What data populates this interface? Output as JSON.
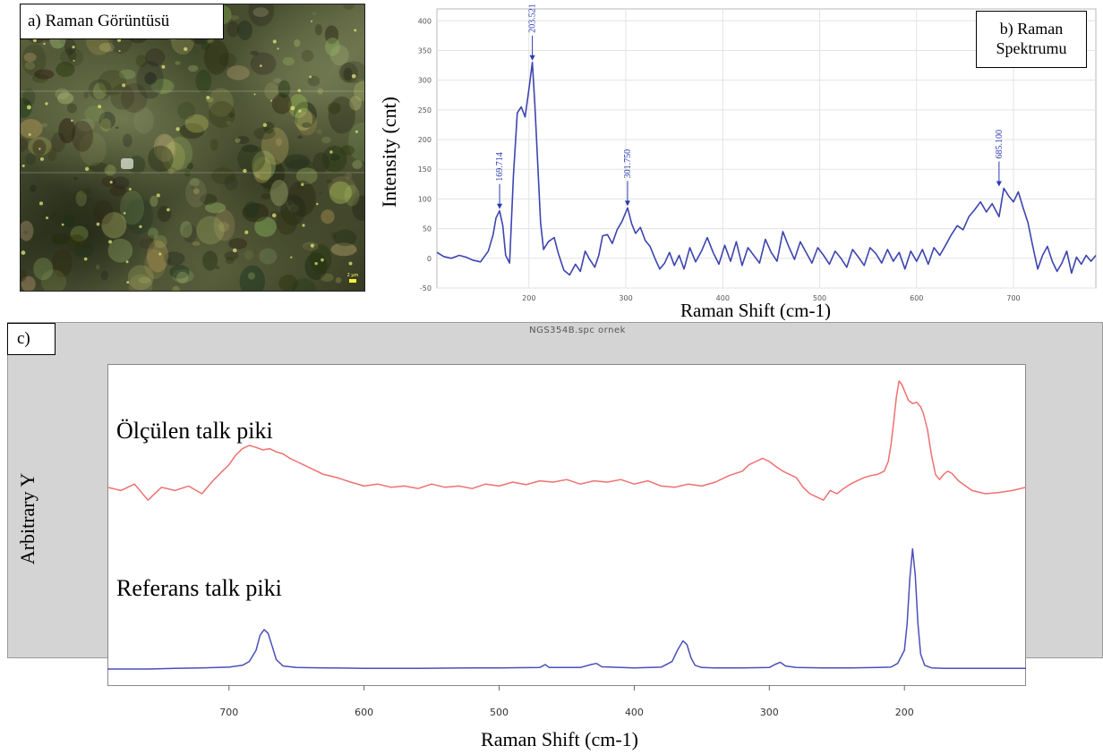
{
  "panel_a": {
    "label": "a) Raman Görüntüsü",
    "scale_bar": "2 µm"
  },
  "panel_b": {
    "label_line1": "b) Raman",
    "label_line2": "Spektrumu"
  },
  "panel_c": {
    "label": "c)",
    "file_title": "NGS354B.spc  ornek",
    "measured_label": "Ölçülen talk piki",
    "reference_label": "Referans talk piki"
  },
  "colors": {
    "spectrum_b": "#3d44b0",
    "measured": "#ef7070",
    "reference": "#4a4fb8",
    "peak_label": "#2a3ab0"
  },
  "chart_data": [
    {
      "type": "line",
      "title": "",
      "xlabel": "Raman Shift (cm-1)",
      "ylabel": "Intensity (cnt)",
      "xlim": [
        105,
        785
      ],
      "ylim": [
        -50,
        420
      ],
      "xticks": [
        200,
        300,
        400,
        500,
        600,
        700
      ],
      "yticks": [
        -50,
        0,
        50,
        100,
        150,
        200,
        250,
        300,
        350,
        400
      ],
      "grid": true,
      "peak_annotations": [
        {
          "x": 169.714,
          "y": 80,
          "label": "169.714"
        },
        {
          "x": 203.521,
          "y": 330,
          "label": "203.521"
        },
        {
          "x": 301.75,
          "y": 85,
          "label": "301.750"
        },
        {
          "x": 685.1,
          "y": 118,
          "label": "685.100"
        }
      ],
      "series": [
        {
          "x": [
            105,
            112,
            120,
            128,
            135,
            142,
            150,
            158,
            163,
            166,
            169.7,
            173,
            176,
            180,
            184,
            188,
            192,
            196,
            200,
            203.5,
            206,
            209,
            212,
            215,
            220,
            226,
            230,
            236,
            242,
            248,
            253,
            258,
            262,
            268,
            272,
            276,
            281,
            286,
            291,
            296,
            301.75,
            306,
            310,
            315,
            320,
            325,
            330,
            335,
            340,
            345,
            350,
            355,
            360,
            366,
            372,
            378,
            384,
            390,
            396,
            402,
            408,
            414,
            420,
            426,
            432,
            438,
            444,
            450,
            456,
            462,
            468,
            474,
            480,
            486,
            492,
            498,
            504,
            510,
            516,
            522,
            528,
            534,
            540,
            546,
            552,
            558,
            564,
            570,
            576,
            582,
            588,
            594,
            600,
            606,
            612,
            618,
            624,
            630,
            636,
            642,
            648,
            654,
            660,
            666,
            672,
            678,
            685.1,
            690,
            695,
            700,
            705,
            710,
            715,
            720,
            725,
            730,
            735,
            740,
            745,
            750,
            755,
            760,
            765,
            770,
            775,
            780,
            785
          ],
          "y": [
            10,
            3,
            0,
            5,
            2,
            -3,
            -6,
            12,
            40,
            68,
            80,
            55,
            5,
            -8,
            140,
            245,
            255,
            238,
            285,
            330,
            262,
            160,
            60,
            15,
            28,
            35,
            10,
            -20,
            -28,
            -10,
            -22,
            12,
            0,
            -15,
            5,
            38,
            40,
            25,
            48,
            62,
            85,
            58,
            42,
            52,
            30,
            20,
            0,
            -18,
            -8,
            10,
            -12,
            5,
            -18,
            18,
            -6,
            12,
            35,
            10,
            -10,
            22,
            -5,
            28,
            -12,
            18,
            5,
            -8,
            32,
            10,
            -5,
            45,
            20,
            -2,
            28,
            10,
            -8,
            18,
            5,
            -10,
            12,
            0,
            -15,
            15,
            2,
            -12,
            18,
            8,
            -8,
            15,
            -5,
            10,
            -18,
            12,
            -5,
            15,
            -10,
            18,
            5,
            22,
            40,
            55,
            48,
            70,
            82,
            95,
            78,
            92,
            70,
            118,
            105,
            95,
            112,
            85,
            60,
            20,
            -18,
            5,
            20,
            -5,
            -22,
            -8,
            12,
            -25,
            2,
            -10,
            5,
            -5,
            5
          ]
        }
      ]
    },
    {
      "type": "line",
      "title": "NGS354B.spc  ornek",
      "xlabel": "Raman Shift (cm-1)",
      "ylabel": "Arbitrary Y",
      "xlim": [
        790,
        110
      ],
      "xticks": [
        700,
        600,
        500,
        400,
        300,
        200
      ],
      "grid": false,
      "series": [
        {
          "name": "Ölçülen talk piki",
          "x": [
            790,
            780,
            770,
            760,
            750,
            740,
            730,
            720,
            712,
            705,
            700,
            695,
            690,
            685,
            680,
            675,
            670,
            665,
            660,
            655,
            650,
            645,
            640,
            635,
            630,
            620,
            610,
            600,
            590,
            580,
            570,
            560,
            550,
            540,
            530,
            520,
            510,
            500,
            490,
            480,
            470,
            460,
            450,
            440,
            430,
            420,
            410,
            400,
            390,
            380,
            370,
            360,
            350,
            340,
            330,
            320,
            315,
            310,
            305,
            300,
            295,
            290,
            285,
            280,
            275,
            270,
            265,
            260,
            255,
            250,
            245,
            240,
            235,
            230,
            225,
            220,
            215,
            212,
            210,
            208,
            206,
            204,
            202,
            200,
            197,
            194,
            191,
            188,
            186,
            183,
            180,
            177,
            174,
            171,
            168,
            165,
            160,
            150,
            140,
            130,
            120,
            110
          ],
          "y": [
            0.1,
            0.05,
            0.15,
            -0.1,
            0.1,
            0.05,
            0.12,
            0.0,
            0.2,
            0.35,
            0.45,
            0.6,
            0.7,
            0.75,
            0.72,
            0.68,
            0.7,
            0.65,
            0.62,
            0.55,
            0.5,
            0.45,
            0.4,
            0.35,
            0.3,
            0.25,
            0.18,
            0.12,
            0.15,
            0.1,
            0.12,
            0.08,
            0.15,
            0.1,
            0.12,
            0.08,
            0.15,
            0.12,
            0.18,
            0.14,
            0.2,
            0.18,
            0.22,
            0.15,
            0.2,
            0.18,
            0.22,
            0.15,
            0.2,
            0.12,
            0.1,
            0.15,
            0.12,
            0.18,
            0.28,
            0.35,
            0.45,
            0.5,
            0.55,
            0.5,
            0.42,
            0.35,
            0.3,
            0.25,
            0.1,
            0.0,
            -0.05,
            -0.1,
            0.05,
            0.0,
            0.08,
            0.15,
            0.2,
            0.25,
            0.28,
            0.3,
            0.35,
            0.5,
            0.75,
            1.1,
            1.5,
            1.75,
            1.7,
            1.6,
            1.45,
            1.4,
            1.42,
            1.35,
            1.25,
            1.0,
            0.6,
            0.3,
            0.22,
            0.3,
            0.35,
            0.32,
            0.2,
            0.05,
            0.0,
            0.02,
            0.05,
            0.1
          ]
        },
        {
          "name": "Referans talk piki",
          "x": [
            790,
            760,
            740,
            720,
            700,
            690,
            685,
            680,
            677,
            674,
            671,
            668,
            665,
            660,
            650,
            630,
            600,
            580,
            560,
            520,
            500,
            470,
            466,
            463,
            440,
            432,
            428,
            424,
            400,
            380,
            372,
            368,
            364,
            361,
            358,
            355,
            350,
            340,
            320,
            300,
            296,
            292,
            288,
            280,
            260,
            240,
            220,
            210,
            205,
            200,
            198,
            196,
            194,
            192,
            190,
            188,
            185,
            180,
            170,
            150,
            130,
            110
          ],
          "y": [
            0.0,
            0.0,
            0.02,
            0.03,
            0.05,
            0.1,
            0.2,
            0.5,
            0.9,
            1.05,
            0.95,
            0.6,
            0.25,
            0.08,
            0.04,
            0.03,
            0.02,
            0.02,
            0.02,
            0.03,
            0.03,
            0.04,
            0.12,
            0.04,
            0.04,
            0.12,
            0.15,
            0.06,
            0.03,
            0.05,
            0.2,
            0.5,
            0.75,
            0.65,
            0.3,
            0.1,
            0.04,
            0.03,
            0.03,
            0.04,
            0.12,
            0.18,
            0.08,
            0.04,
            0.03,
            0.03,
            0.04,
            0.05,
            0.15,
            0.5,
            1.2,
            2.4,
            3.2,
            2.5,
            1.2,
            0.4,
            0.1,
            0.03,
            0.02,
            0.02,
            0.02,
            0.02
          ]
        }
      ]
    }
  ]
}
